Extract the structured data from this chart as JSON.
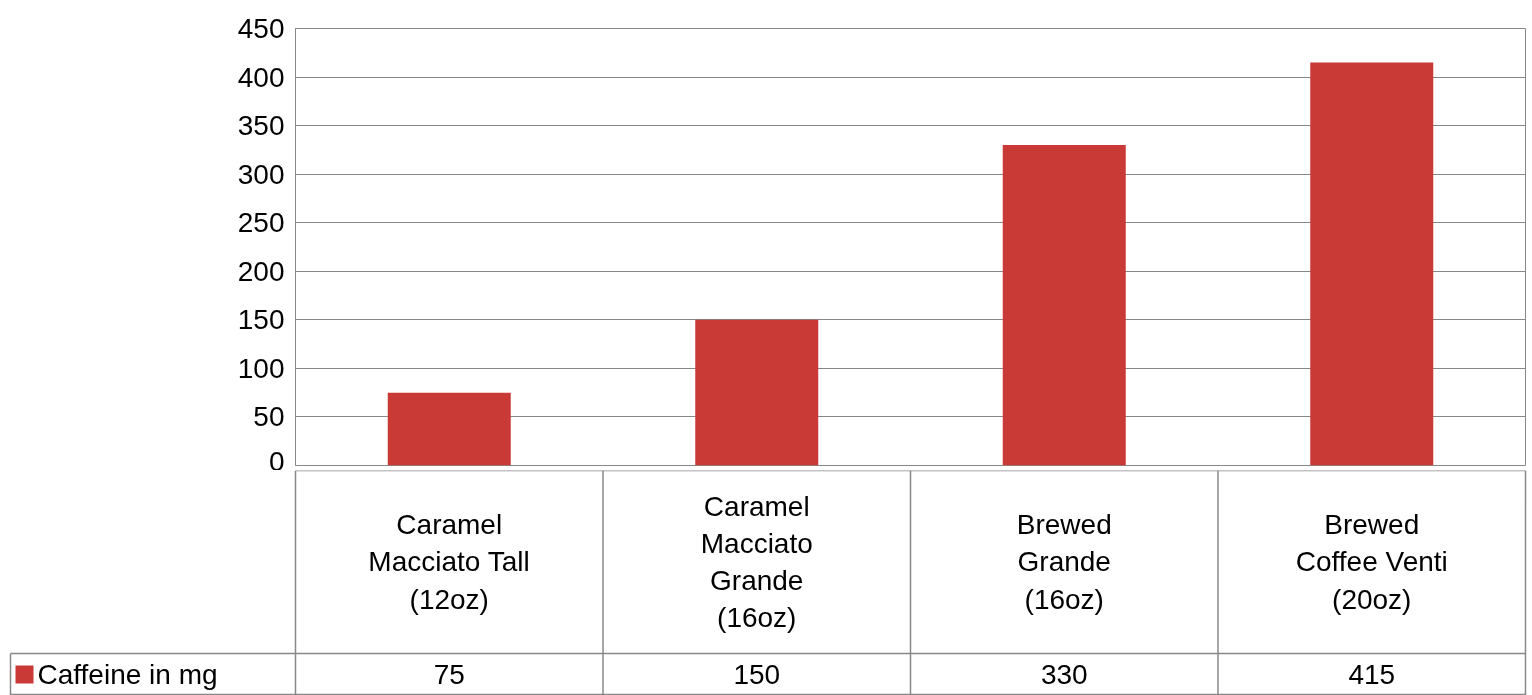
{
  "chart_data": {
    "type": "bar",
    "categories": [
      "Caramel\nMacciato Tall\n(12oz)",
      "Caramel\nMacciato\nGrande\n(16oz)",
      "Brewed\nGrande\n(16oz)",
      "Brewed\nCoffee Venti\n(20oz)"
    ],
    "series": [
      {
        "name": "Caffeine in mg",
        "color": "#c93a36",
        "values": [
          75,
          150,
          330,
          415
        ]
      }
    ],
    "ylim": [
      0,
      450
    ],
    "yticks": [
      0,
      50,
      100,
      150,
      200,
      250,
      300,
      350,
      400,
      450
    ],
    "grid": "y",
    "data_labels": true
  }
}
